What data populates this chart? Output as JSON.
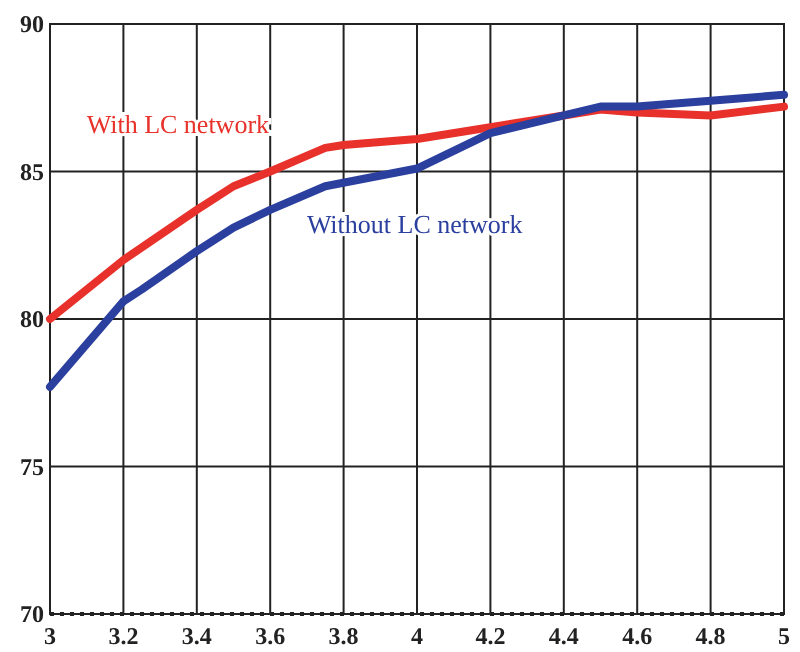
{
  "chart_data": {
    "type": "line",
    "xlim": [
      3,
      5
    ],
    "xticks": [
      3,
      3.2,
      3.4,
      3.6,
      3.8,
      4,
      4.2,
      4.4,
      4.6,
      4.8,
      5
    ],
    "ylim": [
      70,
      90
    ],
    "yticks": [
      70,
      75,
      80,
      85,
      90
    ],
    "grid": true,
    "legend": false,
    "line_style": "solid",
    "marker": "none",
    "series": [
      {
        "name": "With LC network",
        "color": "#e8312a",
        "x": [
          3,
          3.2,
          3.4,
          3.5,
          3.6,
          3.75,
          3.8,
          4,
          4.2,
          4.4,
          4.5,
          4.6,
          4.8,
          5
        ],
        "values": [
          80,
          82,
          83.7,
          84.5,
          85,
          85.8,
          85.9,
          86.1,
          86.5,
          86.9,
          87.1,
          87,
          86.9,
          87.2
        ]
      },
      {
        "name": "Without LC network",
        "color": "#2b3f9e",
        "x": [
          3,
          3.2,
          3.25,
          3.4,
          3.5,
          3.6,
          3.75,
          4,
          4.2,
          4.4,
          4.5,
          4.6,
          4.8,
          5
        ],
        "values": [
          77.7,
          80.6,
          81,
          82.3,
          83.1,
          83.7,
          84.5,
          85.1,
          86.3,
          86.9,
          87.2,
          87.2,
          87.4,
          87.6
        ]
      }
    ]
  }
}
